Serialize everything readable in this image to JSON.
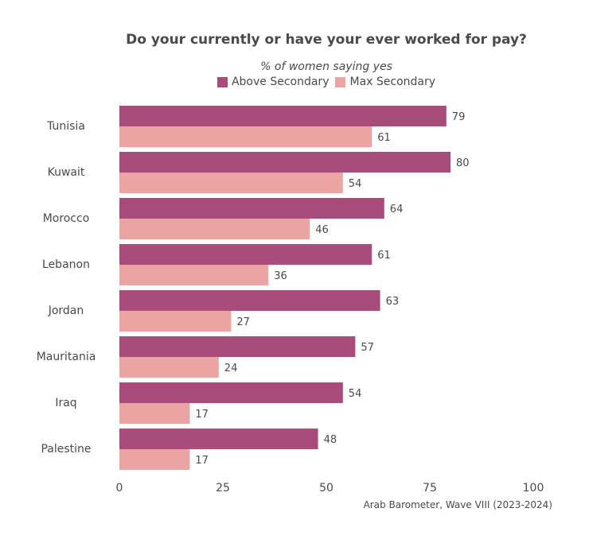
{
  "chart_data": {
    "type": "bar",
    "orientation": "horizontal",
    "title": "Do your currently or have your ever worked for pay?",
    "subtitle": "% of women saying yes",
    "categories": [
      "Tunisia",
      "Kuwait",
      "Morocco",
      "Lebanon",
      "Jordan",
      "Mauritania",
      "Iraq",
      "Palestine"
    ],
    "series": [
      {
        "name": "Above Secondary",
        "color": "#a94c7c",
        "values": [
          79,
          80,
          64,
          61,
          63,
          57,
          54,
          48
        ]
      },
      {
        "name": "Max Secondary",
        "color": "#eaa5a3",
        "values": [
          61,
          54,
          46,
          36,
          27,
          24,
          17,
          17
        ]
      }
    ],
    "xlim": [
      0,
      100
    ],
    "xticks": [
      0,
      25,
      50,
      75,
      100
    ],
    "grid": false,
    "legend_position": "top",
    "source": "Arab Barometer, Wave VIII (2023-2024)"
  }
}
